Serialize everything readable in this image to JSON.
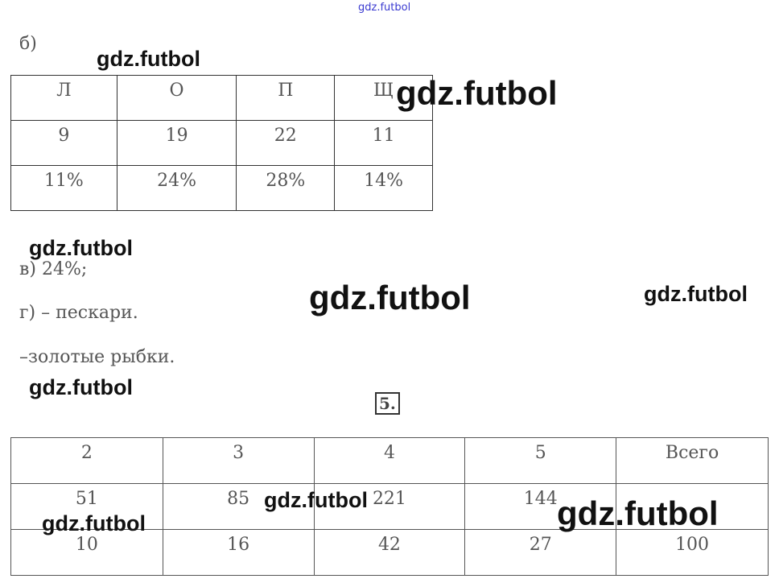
{
  "watermark": "gdz.futbol",
  "section_b": {
    "label": "б)",
    "headers": [
      "Л",
      "О",
      "П",
      "Щ"
    ],
    "counts": [
      "9",
      "19",
      "22",
      "11"
    ],
    "percents": [
      "11%",
      "24%",
      "28%",
      "14%"
    ]
  },
  "section_v": "в) 24%;",
  "section_g": "г) – пескари.",
  "section_g2": "–золотые рыбки.",
  "task5": {
    "number": "5.",
    "headers": [
      "2",
      "3",
      "4",
      "5",
      "Всего"
    ],
    "row1": [
      "51",
      "85",
      "221",
      "144",
      ""
    ],
    "row2": [
      "10",
      "16",
      "42",
      "27",
      "100"
    ]
  }
}
